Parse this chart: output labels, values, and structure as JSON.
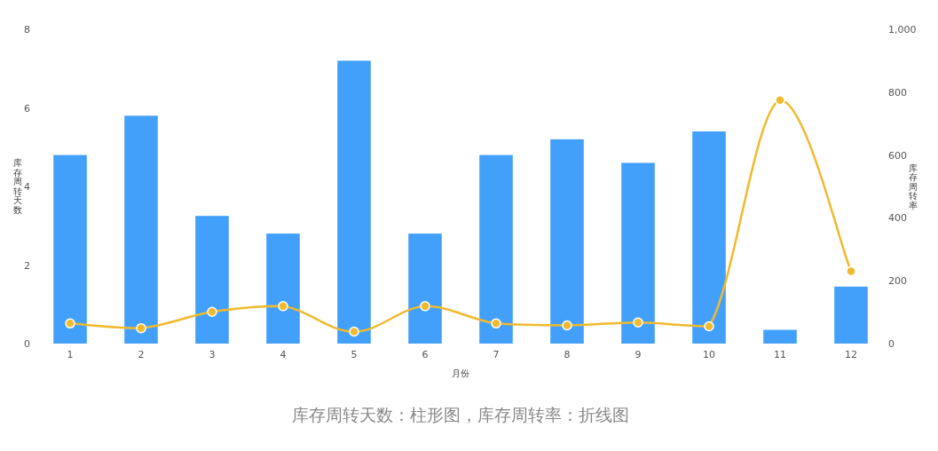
{
  "chart_data": {
    "type": "bar",
    "xlabel": "月份",
    "ylabel": "库存周转天数",
    "y2label": "库存周转率",
    "categories": [
      "1",
      "2",
      "3",
      "4",
      "5",
      "6",
      "7",
      "8",
      "9",
      "10",
      "11",
      "12"
    ],
    "series": [
      {
        "color": "#42a0fa",
        "values": [
          4.8,
          5.8,
          3.25,
          2.8,
          7.2,
          2.8,
          4.8,
          5.2,
          4.6,
          5.4,
          0.35,
          1.45
        ]
      },
      {
        "type": "line",
        "axis": "y2",
        "color": "#f0b92e",
        "values": [
          64,
          49,
          101,
          119,
          38,
          119,
          64,
          58,
          67,
          55,
          775,
          230
        ]
      }
    ],
    "ylim": [
      0,
      8
    ],
    "yticks": [
      0,
      2,
      4,
      6,
      8
    ],
    "y2lim": [
      0,
      1000
    ],
    "y2ticks": [
      0,
      200,
      400,
      600,
      800,
      {
        "value": 1000,
        "label": "1,000"
      }
    ],
    "marker": "circle",
    "annotations": [
      "库存周转天数：柱形图，库存周转率：折线图"
    ]
  }
}
